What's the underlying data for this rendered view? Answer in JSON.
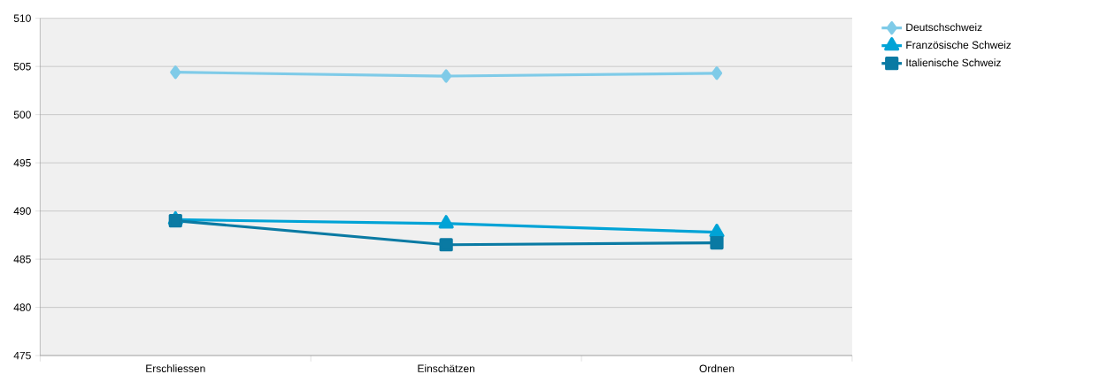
{
  "chart_data": {
    "type": "line",
    "categories": [
      "Erschliessen",
      "Einschätzen",
      "Ordnen"
    ],
    "series": [
      {
        "name": "Deutschschweiz",
        "color": "#7fcbe8",
        "marker": "diamond",
        "values": [
          504.4,
          504.0,
          504.3
        ]
      },
      {
        "name": "Französische Schweiz",
        "color": "#00a3d6",
        "marker": "triangle",
        "values": [
          489.1,
          488.7,
          487.8
        ]
      },
      {
        "name": "Italienische Schweiz",
        "color": "#0a7aa3",
        "marker": "square",
        "values": [
          489.0,
          486.5,
          486.7
        ]
      }
    ],
    "ylim": [
      475,
      510
    ],
    "yticks": [
      475,
      480,
      485,
      490,
      495,
      500,
      505,
      510
    ],
    "grid": "y",
    "legend": "top right",
    "line_style": "solid"
  }
}
